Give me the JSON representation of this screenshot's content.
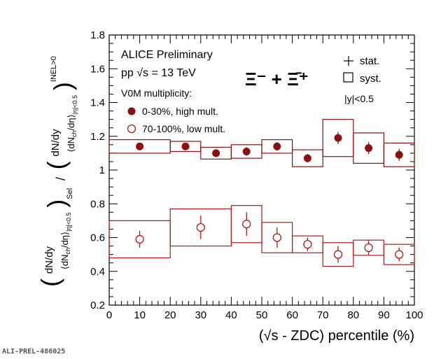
{
  "figure_id": "ALI-PREL-486025",
  "chart_data": {
    "type": "scatter",
    "title_lines": [
      "ALICE Preliminary",
      "pp √s = 13 TeV"
    ],
    "particle_label": "Ξ⁻ + Ξ̄⁺",
    "legend_heading": "V0M multiplicity:",
    "legend_stat": "stat.",
    "legend_syst": "syst.",
    "rapidity_label": "|y|<0.5",
    "xlabel": "(√s - ZDC) percentile (%)",
    "ylabel": "( dN/dy / ⟨dN_ch/dη⟩_|η|<0.5 )_Sel / ( dN/dy / ⟨dN_ch/dη⟩_|η|<0.5 )_INEL>0",
    "xlim": [
      0,
      100
    ],
    "ylim": [
      0.2,
      1.8
    ],
    "xticks": [
      "0",
      "10",
      "20",
      "30",
      "40",
      "50",
      "60",
      "70",
      "80",
      "90",
      "100"
    ],
    "yticks": [
      "0.2",
      "0.4",
      "0.6",
      "0.8",
      "1",
      "1.2",
      "1.4",
      "1.6",
      "1.8"
    ],
    "series": [
      {
        "name": "0-30%, high mult.",
        "marker": "filled-circle",
        "color": "#8b1010",
        "points": [
          {
            "x": 10,
            "y": 1.14,
            "stat": 0.015,
            "xlow": 0,
            "xhigh": 20,
            "syst": 0.04
          },
          {
            "x": 25,
            "y": 1.14,
            "stat": 0.015,
            "xlow": 20,
            "xhigh": 30,
            "syst": 0.03
          },
          {
            "x": 35,
            "y": 1.1,
            "stat": 0.015,
            "xlow": 30,
            "xhigh": 40,
            "syst": 0.035
          },
          {
            "x": 45,
            "y": 1.11,
            "stat": 0.025,
            "xlow": 40,
            "xhigh": 50,
            "syst": 0.04
          },
          {
            "x": 55,
            "y": 1.14,
            "stat": 0.025,
            "xlow": 50,
            "xhigh": 60,
            "syst": 0.04
          },
          {
            "x": 65,
            "y": 1.07,
            "stat": 0.025,
            "xlow": 60,
            "xhigh": 70,
            "syst": 0.05
          },
          {
            "x": 75,
            "y": 1.19,
            "stat": 0.035,
            "xlow": 70,
            "xhigh": 80,
            "syst": 0.11
          },
          {
            "x": 85,
            "y": 1.13,
            "stat": 0.035,
            "xlow": 80,
            "xhigh": 90,
            "syst": 0.09
          },
          {
            "x": 95,
            "y": 1.09,
            "stat": 0.035,
            "xlow": 90,
            "xhigh": 100,
            "syst": 0.07
          }
        ]
      },
      {
        "name": "70-100%, low mult.",
        "marker": "open-circle",
        "color": "#b01818",
        "points": [
          {
            "x": 10,
            "y": 0.59,
            "stat": 0.05,
            "xlow": 0,
            "xhigh": 20,
            "syst": 0.11
          },
          {
            "x": 30,
            "y": 0.66,
            "stat": 0.07,
            "xlow": 20,
            "xhigh": 40,
            "syst": 0.11
          },
          {
            "x": 45,
            "y": 0.68,
            "stat": 0.07,
            "xlow": 40,
            "xhigh": 50,
            "syst": 0.11
          },
          {
            "x": 55,
            "y": 0.6,
            "stat": 0.06,
            "xlow": 50,
            "xhigh": 60,
            "syst": 0.09
          },
          {
            "x": 65,
            "y": 0.56,
            "stat": 0.04,
            "xlow": 60,
            "xhigh": 70,
            "syst": 0.05
          },
          {
            "x": 75,
            "y": 0.5,
            "stat": 0.05,
            "xlow": 70,
            "xhigh": 80,
            "syst": 0.07
          },
          {
            "x": 85,
            "y": 0.54,
            "stat": 0.045,
            "xlow": 80,
            "xhigh": 90,
            "syst": 0.045
          },
          {
            "x": 95,
            "y": 0.5,
            "stat": 0.04,
            "xlow": 90,
            "xhigh": 100,
            "syst": 0.06
          }
        ]
      }
    ]
  }
}
